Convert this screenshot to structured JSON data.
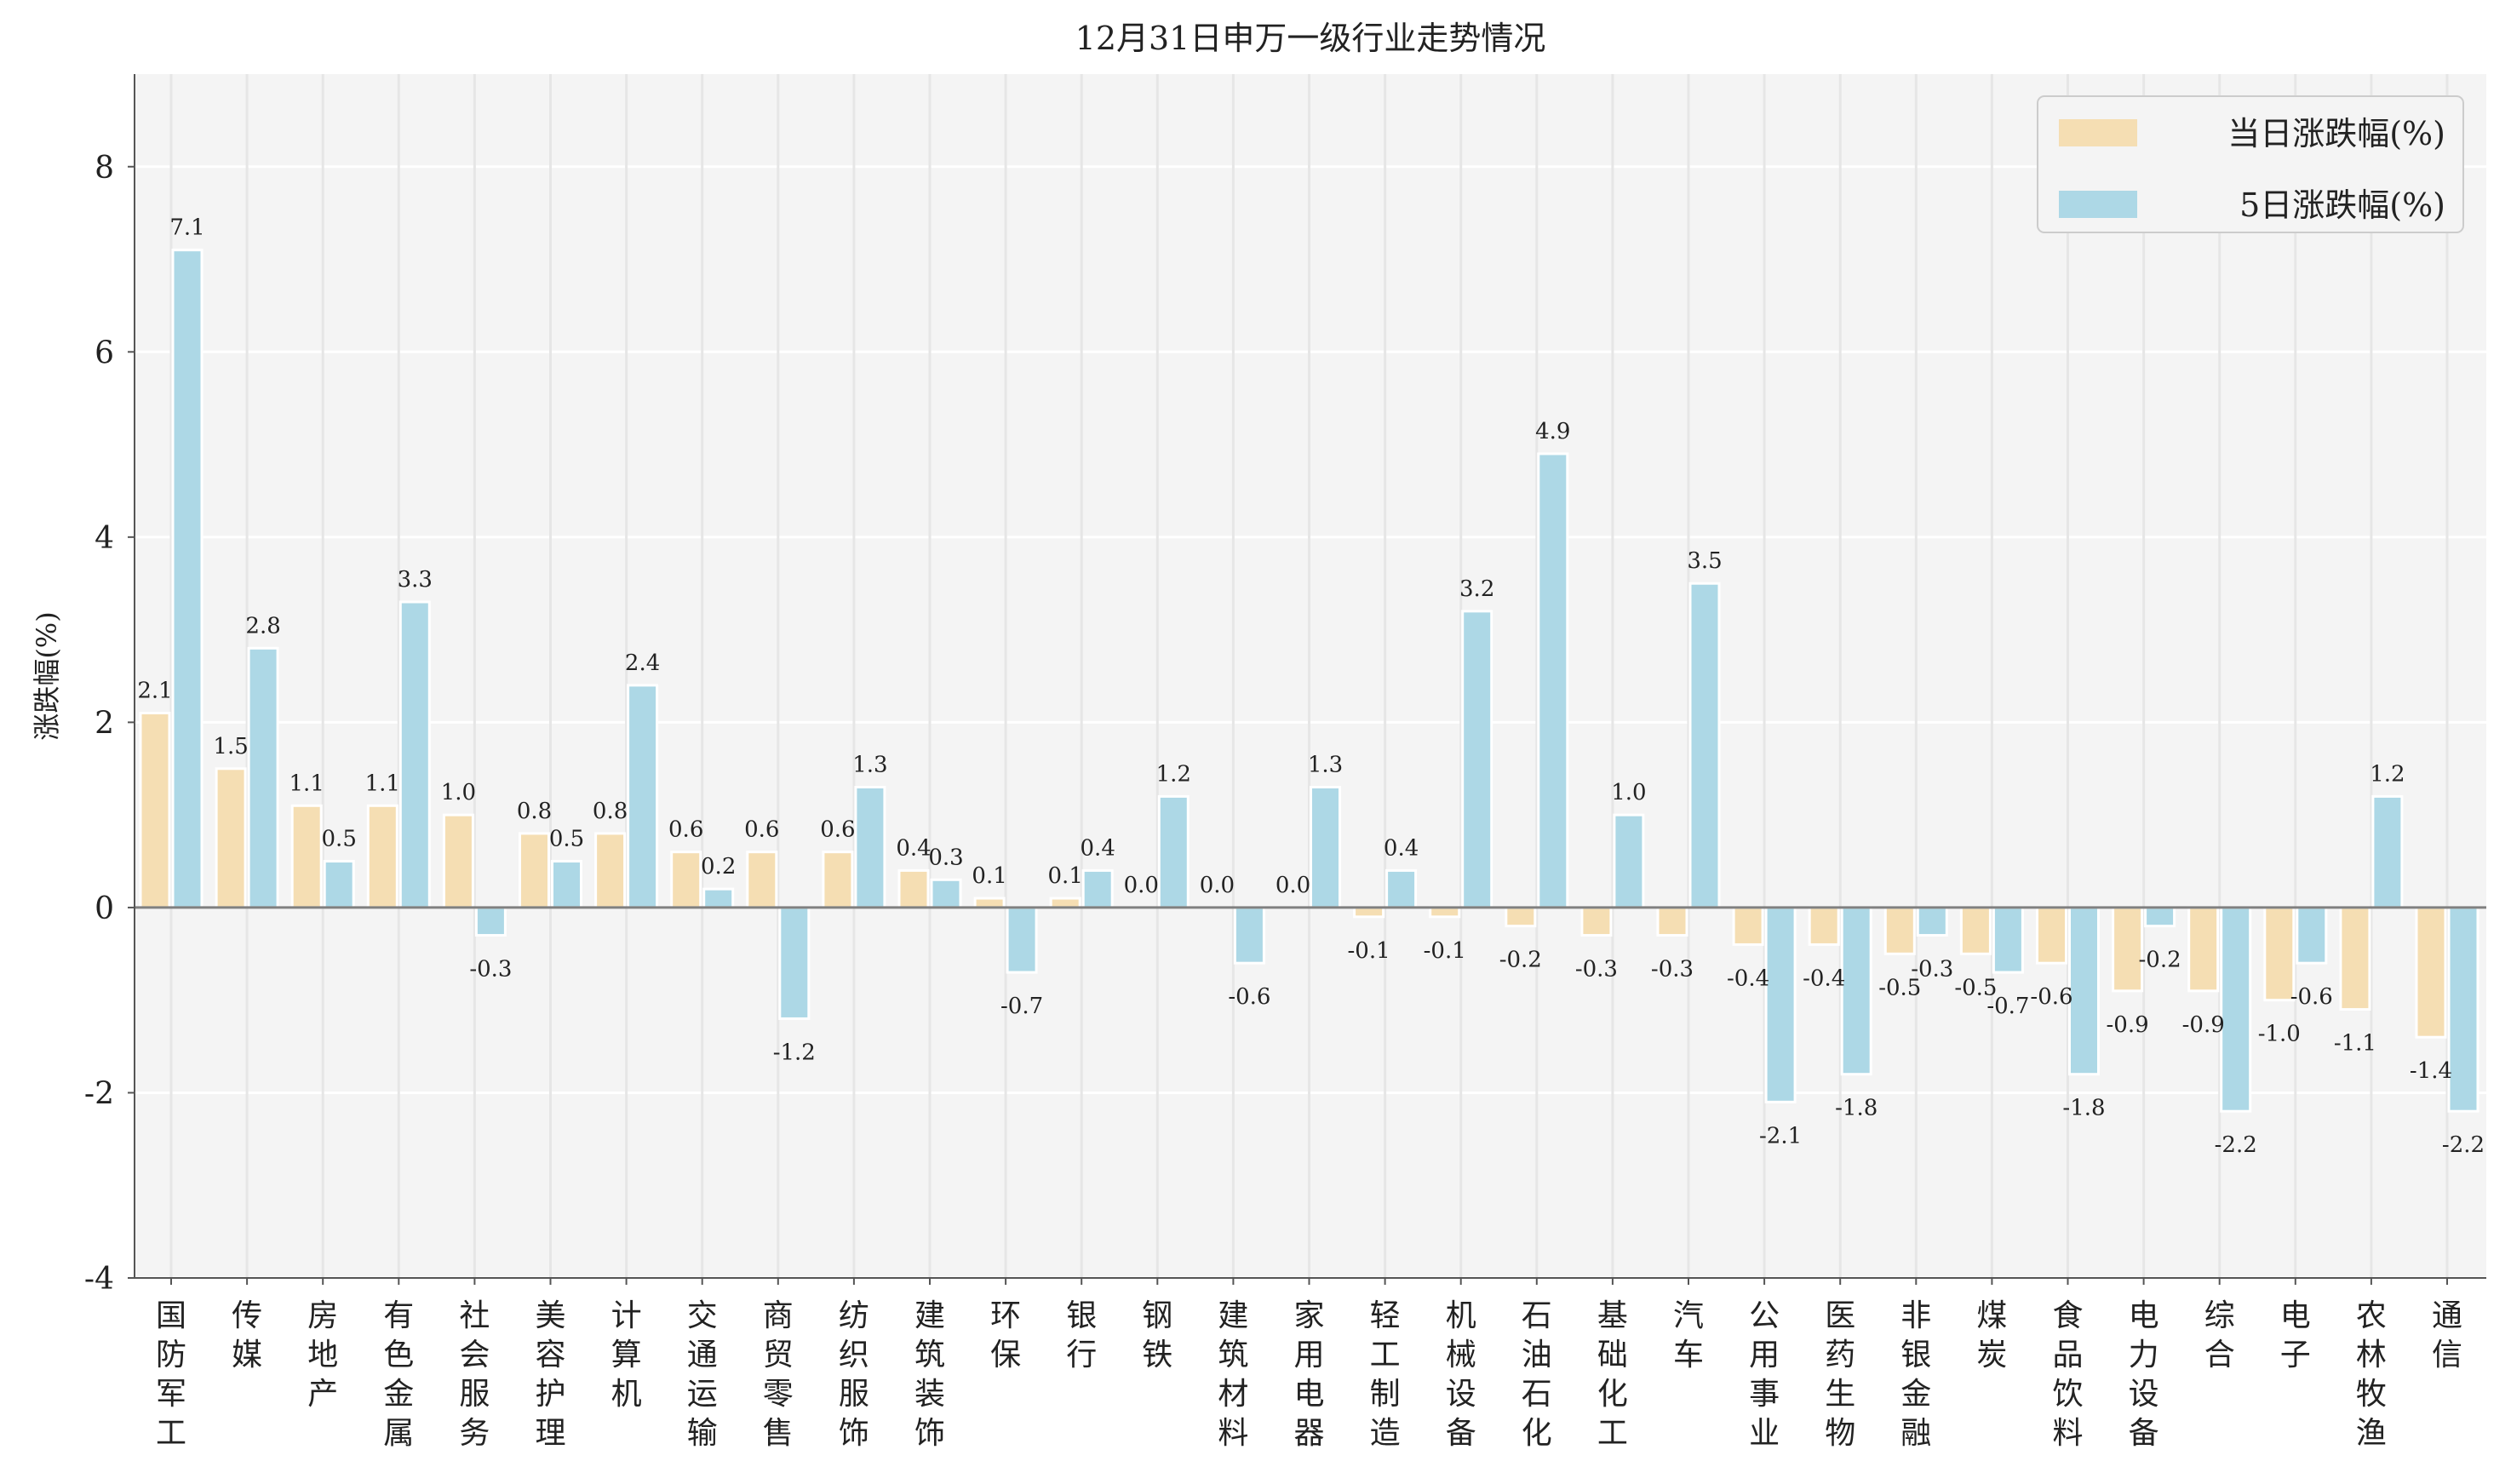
{
  "chart_data": {
    "type": "bar",
    "title": "12月31日申万一级行业走势情况",
    "xlabel": "",
    "ylabel": "涨跌幅(%)",
    "ylim": [
      -4,
      9
    ],
    "yticks": [
      -4,
      -2,
      0,
      2,
      4,
      6,
      8
    ],
    "grid": true,
    "legend_position": "top-right",
    "categories": [
      "国防军工",
      "传媒",
      "房地产",
      "有色金属",
      "社会服务",
      "美容护理",
      "计算机",
      "交通运输",
      "商贸零售",
      "纺织服饰",
      "建筑装饰",
      "环保",
      "银行",
      "钢铁",
      "建筑材料",
      "家用电器",
      "轻工制造",
      "机械设备",
      "石油石化",
      "基础化工",
      "汽车",
      "公用事业",
      "医药生物",
      "非银金融",
      "煤炭",
      "食品饮料",
      "电力设备",
      "综合",
      "电子",
      "农林牧渔",
      "通信"
    ],
    "series": [
      {
        "name": "当日涨跌幅(%)",
        "color": "#f5deb3",
        "values": [
          2.1,
          1.5,
          1.1,
          1.1,
          1.0,
          0.8,
          0.8,
          0.6,
          0.6,
          0.6,
          0.4,
          0.1,
          0.1,
          0.0,
          0.0,
          0.0,
          -0.1,
          -0.1,
          -0.2,
          -0.3,
          -0.3,
          -0.4,
          -0.4,
          -0.5,
          -0.5,
          -0.6,
          -0.9,
          -0.9,
          -1.0,
          -1.1,
          -1.4
        ]
      },
      {
        "name": "5日涨跌幅(%)",
        "color": "#add8e6",
        "values": [
          7.1,
          2.8,
          0.5,
          3.3,
          -0.3,
          0.5,
          2.4,
          0.2,
          -1.2,
          1.3,
          0.3,
          -0.7,
          0.4,
          1.2,
          -0.6,
          1.3,
          0.4,
          3.2,
          4.9,
          1.0,
          3.5,
          -2.1,
          -1.8,
          -0.3,
          -0.7,
          -1.8,
          -0.2,
          -2.2,
          -0.6,
          1.2,
          -2.2
        ]
      }
    ]
  }
}
